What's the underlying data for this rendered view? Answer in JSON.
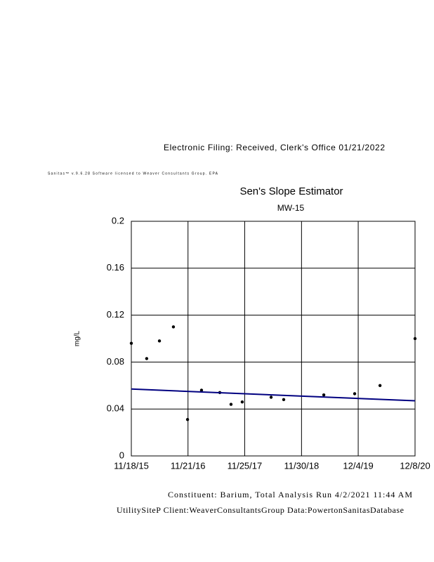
{
  "header": {
    "filing": "Electronic Filing: Received, Clerk's Office 01/21/2022",
    "software": "Sanitas™ v.9.6.28 Software licensed to Weaver Consultants Group. EPA"
  },
  "chart_data": {
    "type": "scatter",
    "title": "Sen's Slope Estimator",
    "subtitle": "MW-15",
    "y_label": "mg/L",
    "x": [
      "11/18/15",
      "2/26/16",
      "5/19/16",
      "8/18/16",
      "11/18/16",
      "2/17/17",
      "6/16/17",
      "8/28/17",
      "11/9/17",
      "5/16/18",
      "8/6/18",
      "4/24/19",
      "11/11/19",
      "4/24/20",
      "12/8/20"
    ],
    "values": [
      0.096,
      0.083,
      0.098,
      0.11,
      0.031,
      0.056,
      0.054,
      0.044,
      0.046,
      0.05,
      0.048,
      0.052,
      0.053,
      0.06,
      0.1
    ],
    "color": "#000000",
    "trend": {
      "x": [
        "11/18/15",
        "12/8/20"
      ],
      "values": [
        0.057,
        0.047
      ],
      "color": "#000080"
    },
    "xlim": [
      "11/18/15",
      "12/8/20"
    ],
    "xticks": [
      "11/18/15",
      "11/21/16",
      "11/25/17",
      "11/30/18",
      "12/4/19",
      "12/8/20"
    ],
    "ylim": [
      0,
      0.2
    ],
    "yticks": [
      0,
      0.04,
      0.08,
      0.12,
      0.16,
      0.2
    ],
    "grid": true
  },
  "footer": {
    "run": "Constituent: Barium, Total Analysis Run 4/2/2021 11:44 AM",
    "info": "UtilitySiteP Client:WeaverConsultantsGroup Data:PowertonSanitasDatabase"
  }
}
